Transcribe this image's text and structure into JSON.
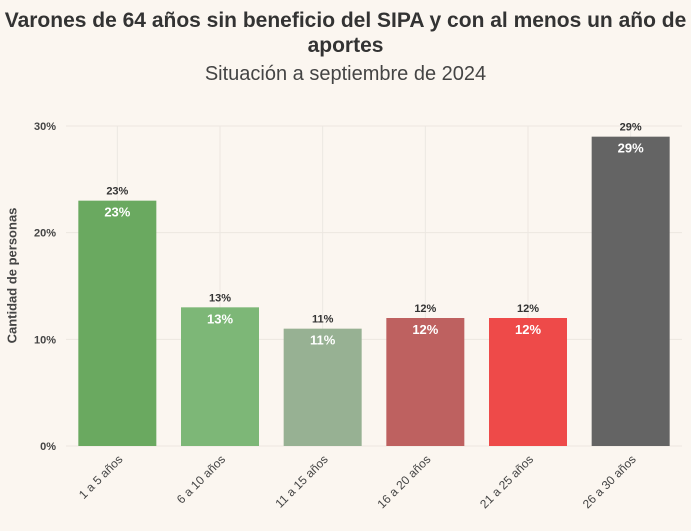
{
  "chart_data": {
    "type": "bar",
    "title": "Varones de 64 años sin beneficio del SIPA y con al menos un año de aportes",
    "subtitle": "Situación a septiembre de 2024",
    "ylabel": "Cantidad de personas",
    "xlabel": "",
    "categories": [
      "1 a 5 años",
      "6 a 10 años",
      "11 a 15 años",
      "16 a 20 años",
      "21 a 25 años",
      "26 a 30 años"
    ],
    "values": [
      23,
      13,
      11,
      12,
      12,
      29
    ],
    "value_labels": [
      "23%",
      "13%",
      "11%",
      "12%",
      "12%",
      "29%"
    ],
    "colors": [
      "#6aa960",
      "#7db777",
      "#97b193",
      "#be6160",
      "#ee4a49",
      "#646464"
    ],
    "ylim": [
      0,
      30
    ],
    "yticks": [
      0,
      10,
      20,
      30
    ],
    "ytick_labels": [
      "0%",
      "10%",
      "20%",
      "30%"
    ],
    "grid": true,
    "legend": "none"
  }
}
